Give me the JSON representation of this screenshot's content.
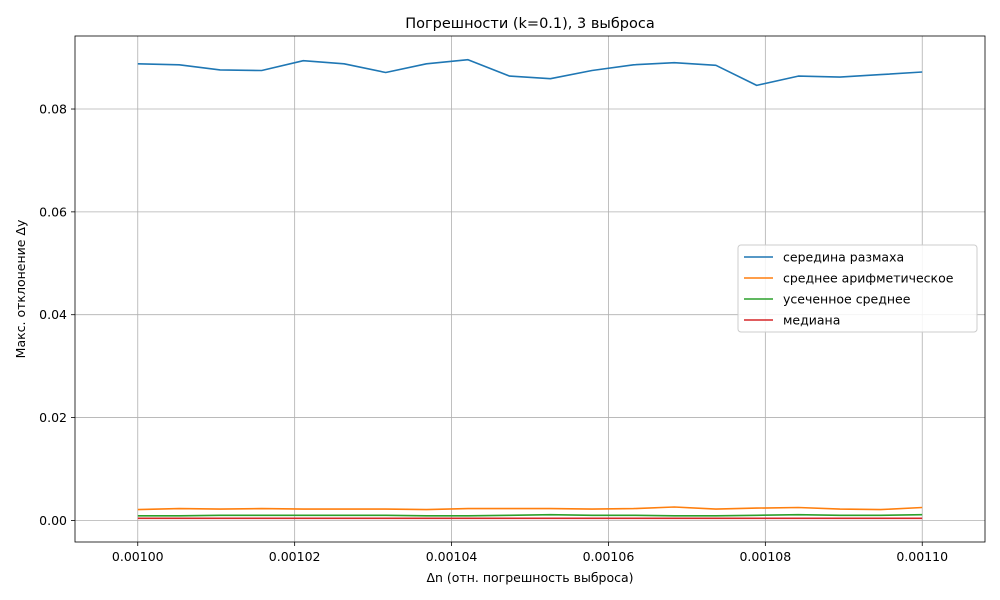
{
  "chart_data": {
    "type": "line",
    "title": "Погрешности (k=0.1), 3 выброса",
    "xlabel": "Δn (отн. погрешность выброса)",
    "ylabel": "Макс. отклонение Δy",
    "xlim": [
      0.000992,
      0.001108
    ],
    "ylim": [
      -0.0042,
      0.0942
    ],
    "x_ticks": [
      0.001,
      0.00102,
      0.00104,
      0.00106,
      0.00108,
      0.0011
    ],
    "x_tick_labels": [
      "0.00100",
      "0.00102",
      "0.00104",
      "0.00106",
      "0.00108",
      "0.00110"
    ],
    "y_ticks": [
      0.0,
      0.02,
      0.04,
      0.06,
      0.08
    ],
    "y_tick_labels": [
      "0.00",
      "0.02",
      "0.04",
      "0.06",
      "0.08"
    ],
    "grid": true,
    "legend_position": "center-right",
    "x": [
      0.001,
      0.0010053,
      0.0010105,
      0.0010158,
      0.0010211,
      0.0010263,
      0.0010316,
      0.0010368,
      0.0010421,
      0.0010474,
      0.0010526,
      0.0010579,
      0.0010632,
      0.0010684,
      0.0010737,
      0.0010789,
      0.0010842,
      0.0010895,
      0.0010947,
      0.0011
    ],
    "series": [
      {
        "name": "середина размаха",
        "color": "#1f77b4",
        "values": [
          0.0888,
          0.0886,
          0.0876,
          0.0875,
          0.0894,
          0.0888,
          0.0871,
          0.0888,
          0.0896,
          0.0864,
          0.0859,
          0.0875,
          0.0886,
          0.089,
          0.0885,
          0.0846,
          0.0864,
          0.0862,
          0.0867,
          0.0872
        ]
      },
      {
        "name": "среднее арифметическое",
        "color": "#ff7f0e",
        "values": [
          0.0021,
          0.0023,
          0.0022,
          0.0023,
          0.0022,
          0.0022,
          0.0022,
          0.0021,
          0.0023,
          0.0023,
          0.0023,
          0.0022,
          0.0023,
          0.0026,
          0.0022,
          0.0024,
          0.0025,
          0.0022,
          0.0021,
          0.0025
        ]
      },
      {
        "name": "усеченное среднее",
        "color": "#2ca02c",
        "values": [
          0.0009,
          0.0009,
          0.001,
          0.001,
          0.001,
          0.001,
          0.001,
          0.0009,
          0.0009,
          0.001,
          0.0011,
          0.001,
          0.001,
          0.0009,
          0.0009,
          0.001,
          0.0011,
          0.001,
          0.001,
          0.0011
        ]
      },
      {
        "name": "медиана",
        "color": "#d62728",
        "values": [
          0.0004,
          0.0004,
          0.0004,
          0.0004,
          0.0004,
          0.0004,
          0.0004,
          0.0004,
          0.0004,
          0.0004,
          0.0004,
          0.0004,
          0.0004,
          0.0004,
          0.0004,
          0.0004,
          0.0004,
          0.0004,
          0.0004,
          0.0004
        ]
      }
    ]
  }
}
